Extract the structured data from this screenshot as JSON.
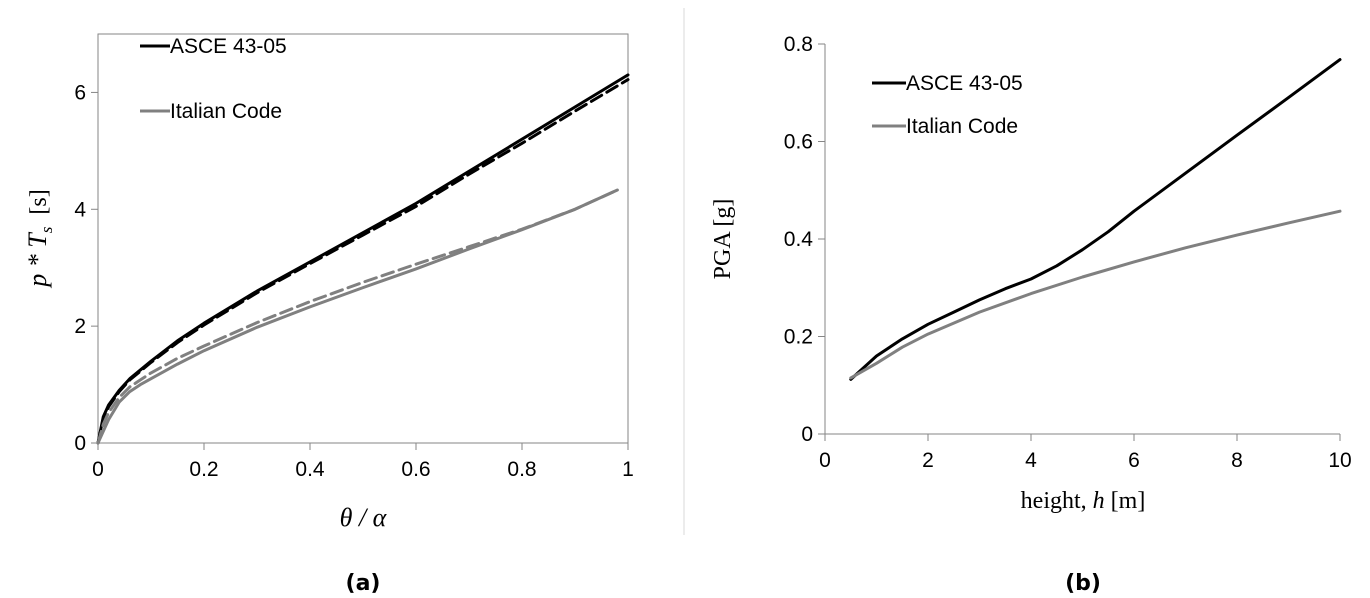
{
  "chart_data": [
    {
      "type": "line",
      "panel": "(a)",
      "xlabel": "θ / α",
      "ylabel_main": "p * T",
      "ylabel_sub": "s",
      "ylabel_unit": "[s]",
      "xlim": [
        0,
        1
      ],
      "ylim": [
        0,
        7
      ],
      "xticks": [
        "0",
        "0.2",
        "0.4",
        "0.6",
        "0.8",
        "1"
      ],
      "xtick_values": [
        0,
        0.2,
        0.4,
        0.6,
        0.8,
        1
      ],
      "yticks": [
        "0",
        "2",
        "4",
        "6"
      ],
      "ytick_values": [
        0,
        2,
        4,
        6
      ],
      "grid": false,
      "legend_position": "top-left",
      "series": [
        {
          "name": "ASCE 43-05",
          "color": "#000000",
          "dash": "solid",
          "x": [
            0,
            0.01,
            0.02,
            0.04,
            0.06,
            0.1,
            0.15,
            0.2,
            0.3,
            0.4,
            0.5,
            0.6,
            0.7,
            0.8,
            0.9,
            1.0
          ],
          "y": [
            0,
            0.45,
            0.65,
            0.9,
            1.1,
            1.4,
            1.75,
            2.05,
            2.6,
            3.1,
            3.6,
            4.1,
            4.65,
            5.2,
            5.75,
            6.3
          ]
        },
        {
          "name": "",
          "color": "#000000",
          "dash": "dashed",
          "x": [
            0,
            0.01,
            0.02,
            0.04,
            0.06,
            0.1,
            0.15,
            0.2,
            0.3,
            0.4,
            0.5,
            0.6,
            0.7,
            0.8,
            0.9,
            1.0
          ],
          "y": [
            0,
            0.42,
            0.62,
            0.88,
            1.08,
            1.38,
            1.72,
            2.02,
            2.57,
            3.07,
            3.56,
            4.05,
            4.6,
            5.13,
            5.68,
            6.22
          ]
        },
        {
          "name": "Italian Code",
          "color": "#808080",
          "dash": "solid",
          "x": [
            0,
            0.01,
            0.02,
            0.04,
            0.06,
            0.08,
            0.1,
            0.15,
            0.2,
            0.3,
            0.4,
            0.5,
            0.6,
            0.7,
            0.8,
            0.9,
            0.98
          ],
          "y": [
            0,
            0.2,
            0.4,
            0.7,
            0.88,
            1.0,
            1.1,
            1.35,
            1.58,
            1.98,
            2.33,
            2.66,
            2.98,
            3.32,
            3.65,
            4.0,
            4.33
          ]
        },
        {
          "name": "",
          "color": "#808080",
          "dash": "dashed",
          "x": [
            0,
            0.01,
            0.02,
            0.04,
            0.06,
            0.08,
            0.1,
            0.15,
            0.2,
            0.3,
            0.4,
            0.5,
            0.6,
            0.7,
            0.8,
            0.9,
            0.98
          ],
          "y": [
            0,
            0.32,
            0.52,
            0.78,
            0.96,
            1.08,
            1.2,
            1.45,
            1.66,
            2.06,
            2.42,
            2.75,
            3.06,
            3.36,
            3.66,
            4.0,
            4.33
          ]
        }
      ]
    },
    {
      "type": "line",
      "panel": "(b)",
      "xlabel_prefix": "height, ",
      "xlabel_var": "h",
      "xlabel_unit": " [m]",
      "ylabel": "PGA [g]",
      "xlim": [
        0,
        10
      ],
      "ylim": [
        0,
        0.8
      ],
      "xticks": [
        "0",
        "2",
        "4",
        "6",
        "8",
        "10"
      ],
      "xtick_values": [
        0,
        2,
        4,
        6,
        8,
        10
      ],
      "yticks": [
        "0",
        "0.2",
        "0.4",
        "0.6",
        "0.8"
      ],
      "ytick_values": [
        0,
        0.2,
        0.4,
        0.6,
        0.8
      ],
      "grid": false,
      "legend_position": "top-left",
      "series": [
        {
          "name": "ASCE 43-05",
          "color": "#000000",
          "dash": "solid",
          "x": [
            0.5,
            1,
            1.5,
            2,
            2.5,
            3,
            3.5,
            4,
            4.5,
            5,
            5.5,
            6,
            7,
            8,
            9,
            10
          ],
          "y": [
            0.112,
            0.16,
            0.195,
            0.225,
            0.25,
            0.275,
            0.298,
            0.318,
            0.345,
            0.378,
            0.415,
            0.457,
            0.535,
            0.613,
            0.69,
            0.768
          ]
        },
        {
          "name": "Italian Code",
          "color": "#808080",
          "dash": "solid",
          "x": [
            0.5,
            1,
            1.5,
            2,
            3,
            4,
            5,
            6,
            7,
            8,
            9,
            10
          ],
          "y": [
            0.115,
            0.145,
            0.178,
            0.205,
            0.25,
            0.288,
            0.322,
            0.353,
            0.382,
            0.408,
            0.433,
            0.457
          ]
        }
      ]
    }
  ]
}
